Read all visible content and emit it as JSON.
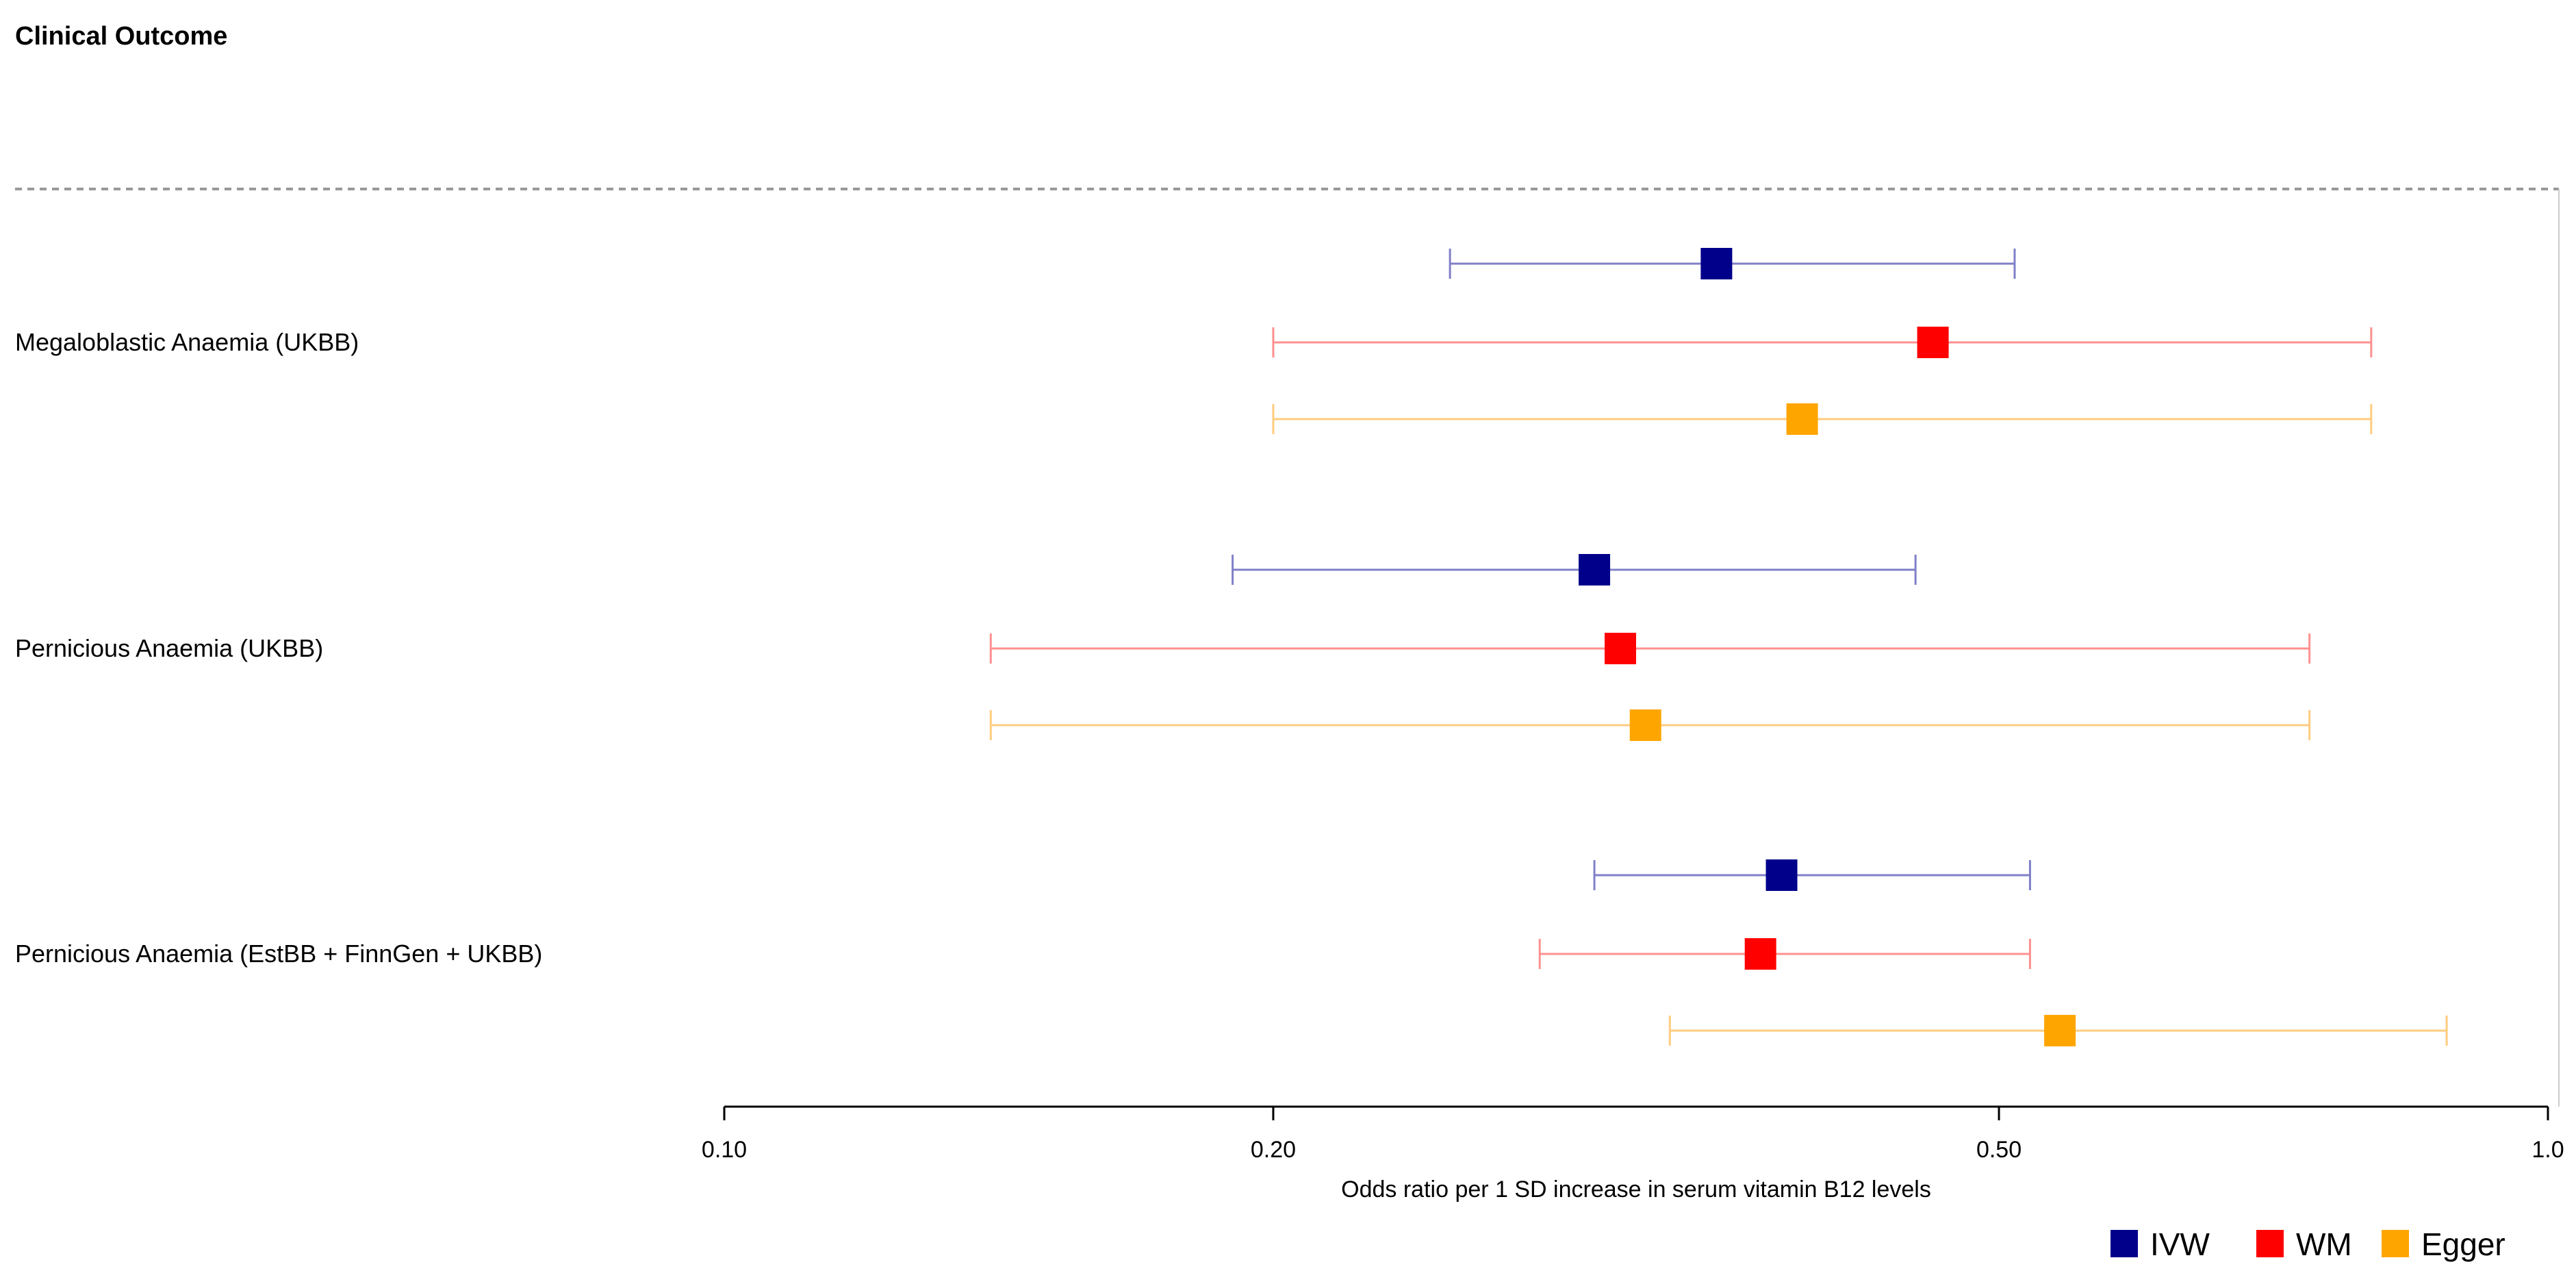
{
  "chart_data": {
    "type": "forest",
    "header": "Clinical Outcome",
    "xlabel": "Odds ratio per 1 SD increase in serum vitamin B12 levels",
    "x_scale": "log",
    "xlim": [
      0.1,
      1.0
    ],
    "x_ticks": [
      {
        "value": 0.1,
        "label": "0.10"
      },
      {
        "value": 0.2,
        "label": "0.20"
      },
      {
        "value": 0.5,
        "label": "0.50"
      },
      {
        "value": 1.0,
        "label": "1.0"
      }
    ],
    "methods": [
      {
        "key": "IVW",
        "label": "IVW",
        "color": "#00008B",
        "ci_color": "#8080C8"
      },
      {
        "key": "WM",
        "label": "WM",
        "color": "#FF0000",
        "ci_color": "#FF9090"
      },
      {
        "key": "Egger",
        "label": "Egger",
        "color": "#FFA500",
        "ci_color": "#FFCC80"
      }
    ],
    "outcomes": [
      {
        "label": "Megaloblastic Anaemia (UKBB)",
        "estimates": [
          {
            "method": "IVW",
            "or": 0.35,
            "lower": 0.25,
            "upper": 0.51
          },
          {
            "method": "WM",
            "or": 0.46,
            "lower": 0.2,
            "upper": 0.8
          },
          {
            "method": "Egger",
            "or": 0.39,
            "lower": 0.2,
            "upper": 0.8
          }
        ]
      },
      {
        "label": "Pernicious Anaemia (UKBB)",
        "estimates": [
          {
            "method": "IVW",
            "or": 0.3,
            "lower": 0.19,
            "upper": 0.45
          },
          {
            "method": "WM",
            "or": 0.31,
            "lower": 0.14,
            "upper": 0.74
          },
          {
            "method": "Egger",
            "or": 0.32,
            "lower": 0.14,
            "upper": 0.74
          }
        ]
      },
      {
        "label": "Pernicious Anaemia (EstBB + FinnGen + UKBB)",
        "estimates": [
          {
            "method": "IVW",
            "or": 0.38,
            "lower": 0.3,
            "upper": 0.52
          },
          {
            "method": "WM",
            "or": 0.37,
            "lower": 0.28,
            "upper": 0.52
          },
          {
            "method": "Egger",
            "or": 0.54,
            "lower": 0.33,
            "upper": 0.88
          }
        ]
      }
    ]
  }
}
